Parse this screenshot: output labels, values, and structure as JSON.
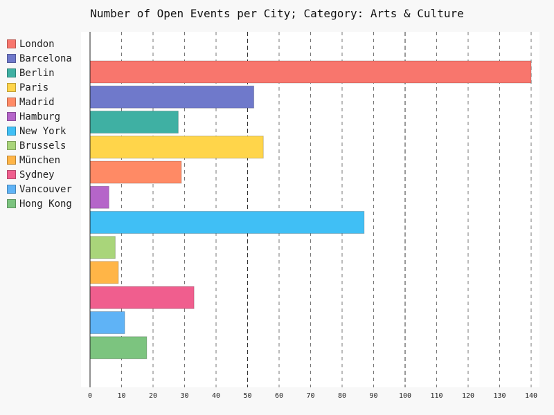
{
  "chart_data": {
    "type": "bar",
    "orientation": "horizontal",
    "title": "Number of Open Events per City; Category: Arts & Culture",
    "xlabel": "",
    "ylabel": "",
    "xlim": [
      0,
      140
    ],
    "x_ticks": [
      0,
      10,
      20,
      30,
      40,
      50,
      60,
      70,
      80,
      90,
      100,
      110,
      120,
      130,
      140
    ],
    "grid": "vertical dashed",
    "legend_position": "left",
    "categories": [
      "London",
      "Barcelona",
      "Berlin",
      "Paris",
      "Madrid",
      "Hamburg",
      "New York",
      "Brussels",
      "München",
      "Sydney",
      "Vancouver",
      "Hong Kong"
    ],
    "values": [
      140,
      52,
      28,
      55,
      29,
      6,
      87,
      8,
      9,
      33,
      11,
      18
    ],
    "colors": [
      "#f8766d",
      "#6f79cb",
      "#3fb0a3",
      "#ffd54a",
      "#ff8a65",
      "#b565c9",
      "#40bff5",
      "#a9d57a",
      "#ffb547",
      "#f05e8e",
      "#5fb3f6",
      "#7cc47f"
    ]
  }
}
